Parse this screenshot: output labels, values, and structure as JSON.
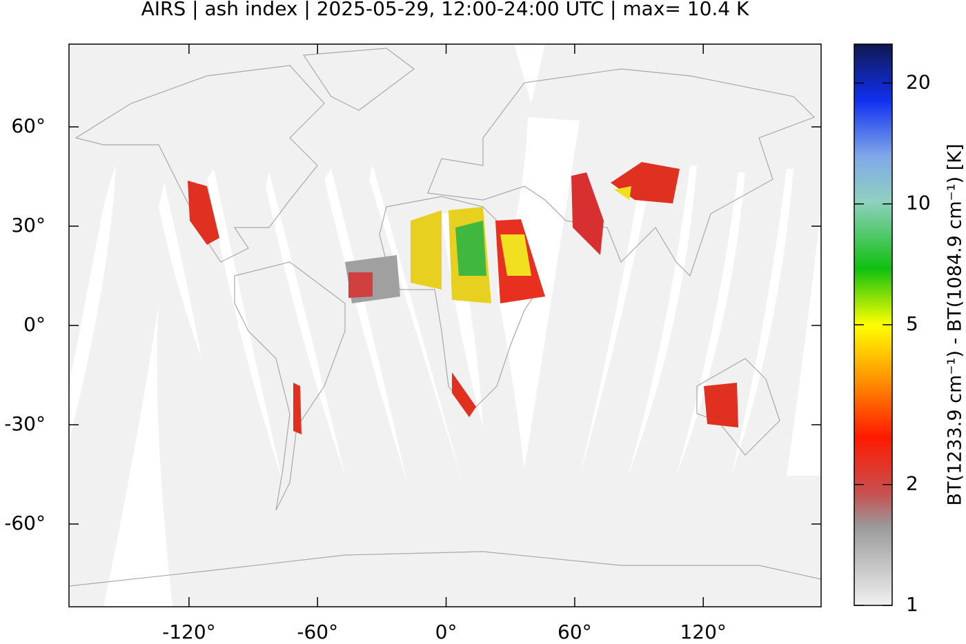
{
  "chart_data": {
    "type": "map",
    "title": "AIRS | ash index | 2025-05-29, 12:00-24:00 UTC | max= 10.4 K",
    "xlim": [
      -176,
      175
    ],
    "ylim": [
      -85,
      85
    ],
    "xticks": [
      {
        "value": -120,
        "label": "-120°"
      },
      {
        "value": -60,
        "label": "-60°"
      },
      {
        "value": 0,
        "label": "0°"
      },
      {
        "value": 60,
        "label": "60°"
      },
      {
        "value": 120,
        "label": "120°"
      }
    ],
    "yticks": [
      {
        "value": -60,
        "label": "-60°"
      },
      {
        "value": -30,
        "label": "-30°"
      },
      {
        "value": 0,
        "label": "0°"
      },
      {
        "value": 30,
        "label": "30°"
      },
      {
        "value": 60,
        "label": "60°"
      }
    ],
    "colorbar": {
      "label": "BT(1233.9 cm⁻¹) - BT(1084.9 cm⁻¹) [K]",
      "lim": [
        1,
        25
      ],
      "ticks": [
        1,
        2,
        5,
        10,
        20
      ],
      "log_scale": true
    }
  }
}
